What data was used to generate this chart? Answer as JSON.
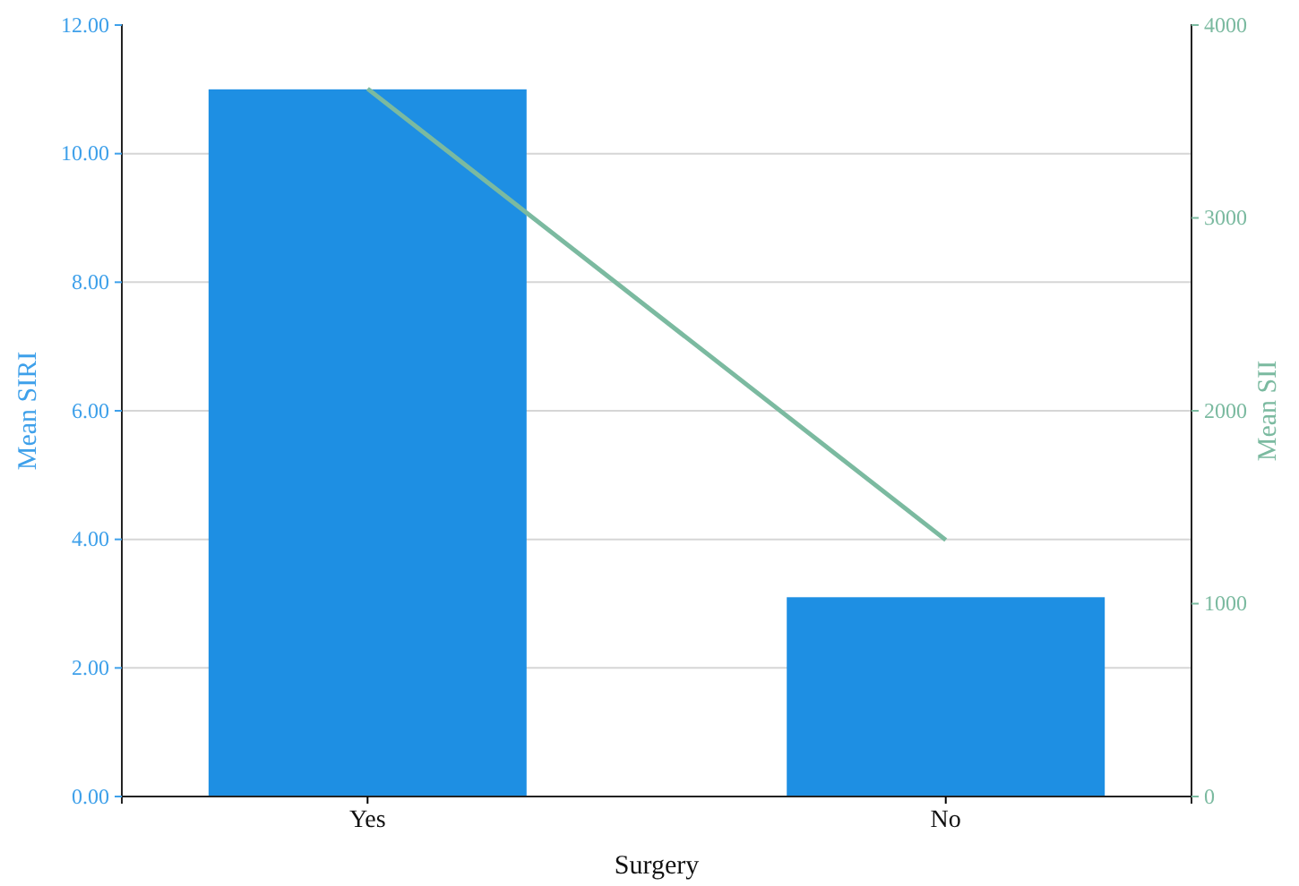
{
  "chart_data": {
    "type": "bar",
    "xlabel": "Surgery",
    "ylabel": "Mean SIRI",
    "y2label": "Mean SII",
    "categories": [
      "Yes",
      "No"
    ],
    "series": [
      {
        "color": "#1e8fe3",
        "values": [
          11.0,
          3.1
        ]
      },
      {
        "type": "line",
        "color": "#7bbaa0",
        "axis": "y2",
        "values": [
          3670,
          1330
        ]
      }
    ],
    "ylim": [
      0,
      12
    ],
    "yticks": [
      {
        "value": 0,
        "label": "0.00"
      },
      {
        "value": 2,
        "label": "2.00"
      },
      {
        "value": 4,
        "label": "4.00"
      },
      {
        "value": 6,
        "label": "6.00"
      },
      {
        "value": 8,
        "label": "8.00"
      },
      {
        "value": 10,
        "label": "10.00"
      },
      {
        "value": 12,
        "label": "12.00"
      }
    ],
    "y2lim": [
      0,
      4000
    ],
    "y2ticks": [
      0,
      1000,
      2000,
      3000,
      4000
    ],
    "grid": "y",
    "marker": "none",
    "line_style": "solid"
  }
}
